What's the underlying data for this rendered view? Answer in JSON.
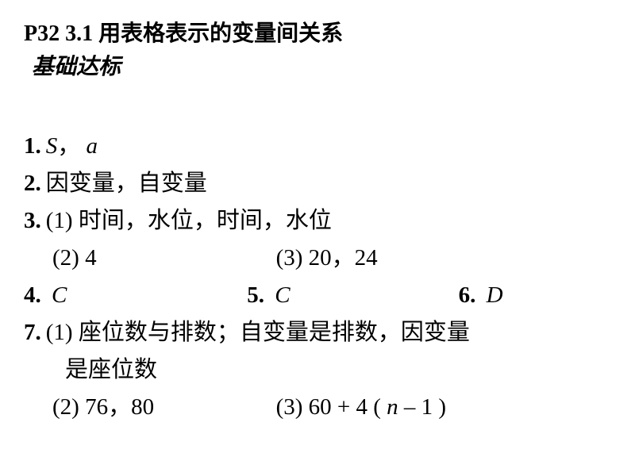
{
  "header": {
    "line1": "P32  3.1 用表格表示的变量间关系",
    "line2": "基础达标"
  },
  "answers": {
    "q1_num": "1.",
    "q1_a": "S",
    "q1_sep": "，",
    "q1_b": "a",
    "q2_num": "2.",
    "q2_text": "因变量，自变量",
    "q3_num": "3.",
    "q3_p1": "(1) 时间，水位，时间，水位",
    "q3_p2": "(2) 4",
    "q3_p3": "(3) 20，24",
    "q4_num": "4.",
    "q4_ans": "C",
    "q5_num": "5.",
    "q5_ans": "C",
    "q6_num": "6.",
    "q6_ans": "D",
    "q7_num": "7.",
    "q7_p1a": "(1) 座位数与排数；自变量是排数，因变量",
    "q7_p1b": "是座位数",
    "q7_p2": "(2) 76，80",
    "q7_p3a": "(3) 60 + 4 ( ",
    "q7_p3_n": "n",
    "q7_p3b": " – 1 )"
  },
  "style": {
    "background": "#ffffff",
    "text_color": "#000000",
    "header_fontsize": 28,
    "body_fontsize": 29,
    "line_height": 1.55
  }
}
